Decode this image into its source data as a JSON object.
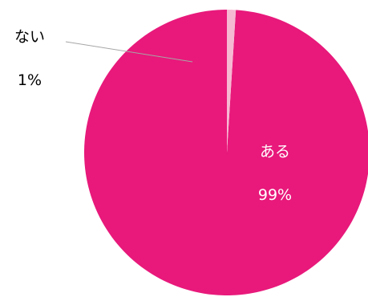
{
  "chart_data": {
    "type": "pie",
    "title": "",
    "start_angle_deg": 0,
    "direction": "counterclockwise",
    "slices": [
      {
        "label": "ある",
        "value": 99,
        "value_label": "99%",
        "color": "#e8197b"
      },
      {
        "label": "ない",
        "value": 1,
        "value_label": "1%",
        "color": "#f6b9d2"
      }
    ],
    "leader_line_color": "#a6a6a6",
    "inside_label_color": "#ffffff",
    "outside_label_color": "#000000"
  }
}
